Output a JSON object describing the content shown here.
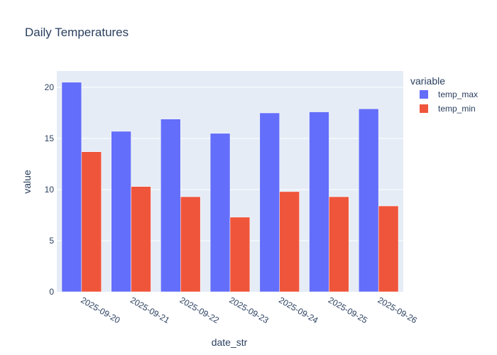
{
  "chart_data": {
    "type": "bar",
    "title": "Daily Temperatures",
    "xlabel": "date_str",
    "ylabel": "value",
    "categories": [
      "2025-09-20",
      "2025-09-21",
      "2025-09-22",
      "2025-09-23",
      "2025-09-24",
      "2025-09-25",
      "2025-09-26"
    ],
    "series": [
      {
        "name": "temp_max",
        "color": "#636efa",
        "values": [
          20.5,
          15.7,
          16.9,
          15.5,
          17.5,
          17.6,
          17.9
        ]
      },
      {
        "name": "temp_min",
        "color": "#ef553b",
        "values": [
          13.7,
          10.3,
          9.3,
          7.3,
          9.8,
          9.3,
          8.4
        ]
      }
    ],
    "ylim": [
      0,
      21.6
    ],
    "yticks": [
      0,
      5,
      10,
      15,
      20
    ],
    "legend": {
      "title": "variable",
      "placement": "top-right"
    },
    "grid": true,
    "plot_background": "#e5ecf6"
  }
}
